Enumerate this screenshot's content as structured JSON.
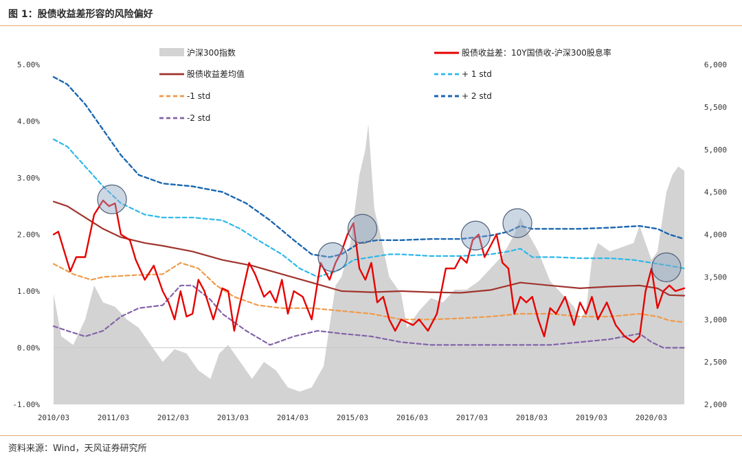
{
  "figure": {
    "title": "图 1：股债收益差形容的风险偏好",
    "source": "资料来源：Wind，天风证券研究所"
  },
  "colors": {
    "hs300_area": "#d3d3d3",
    "spread": "#e60000",
    "mean": "#a0342e",
    "plus1": "#2bb8ea",
    "plus2": "#1a66b0",
    "minus1": "#f09a4a",
    "minus2": "#8263a8",
    "circle": "#8fa6c4",
    "rule": "#e2a877"
  },
  "chart_data": {
    "type": "line",
    "title": "",
    "x_ticks": [
      "2010/03",
      "2011/03",
      "2012/03",
      "2013/03",
      "2014/03",
      "2015/03",
      "2016/03",
      "2017/03",
      "2018/03",
      "2019/03",
      "2020/03"
    ],
    "x_range": [
      2010.17,
      2020.75
    ],
    "y_left": {
      "ylim": [
        -1.0,
        5.0
      ],
      "ticks": [
        "-1.00%",
        "0.00%",
        "1.00%",
        "2.00%",
        "3.00%",
        "4.00%",
        "5.00%"
      ]
    },
    "y_right": {
      "ylim": [
        2000,
        6000
      ],
      "ticks": [
        "2,000",
        "2,500",
        "3,000",
        "3,500",
        "4,000",
        "4,500",
        "5,000",
        "5,500",
        "6,000"
      ]
    },
    "legend": [
      "沪深300指数",
      "股债收益差：10Y国债收-沪深300股息率",
      "股债收益差均值",
      "+ 1 std",
      "-1 std",
      "+ 2 std",
      "-2 std"
    ],
    "series": [
      {
        "name": "沪深300指数",
        "axis": "right",
        "kind": "area",
        "x": [
          2010.17,
          2010.3,
          2010.5,
          2010.7,
          2010.85,
          2011.0,
          2011.2,
          2011.4,
          2011.6,
          2011.8,
          2012.0,
          2012.2,
          2012.4,
          2012.6,
          2012.8,
          2012.95,
          2013.1,
          2013.3,
          2013.5,
          2013.7,
          2013.9,
          2014.1,
          2014.3,
          2014.5,
          2014.7,
          2014.9,
          2015.0,
          2015.15,
          2015.3,
          2015.4,
          2015.45,
          2015.55,
          2015.65,
          2015.8,
          2016.0,
          2016.1,
          2016.3,
          2016.5,
          2016.7,
          2016.9,
          2017.1,
          2017.3,
          2017.5,
          2017.7,
          2017.9,
          2018.0,
          2018.1,
          2018.3,
          2018.5,
          2018.7,
          2018.9,
          2019.0,
          2019.1,
          2019.2,
          2019.3,
          2019.5,
          2019.7,
          2019.9,
          2020.0,
          2020.1,
          2020.2,
          2020.3,
          2020.45,
          2020.55,
          2020.65,
          2020.75
        ],
        "y": [
          3300,
          2800,
          2700,
          3000,
          3400,
          3200,
          3150,
          3000,
          2900,
          2700,
          2500,
          2650,
          2600,
          2400,
          2300,
          2600,
          2700,
          2500,
          2300,
          2500,
          2400,
          2200,
          2150,
          2200,
          2450,
          3400,
          3500,
          3900,
          4700,
          5000,
          5300,
          4300,
          4000,
          3500,
          3300,
          2900,
          3100,
          3250,
          3200,
          3350,
          3350,
          3450,
          3600,
          3750,
          4000,
          4200,
          4050,
          3800,
          3450,
          3300,
          3150,
          3000,
          3100,
          3700,
          3900,
          3800,
          3850,
          3900,
          4100,
          3900,
          3700,
          3800,
          4500,
          4700,
          4800,
          4750
        ]
      },
      {
        "name": "股债收益差：10Y国债收-沪深300股息率",
        "axis": "left",
        "kind": "line",
        "x": [
          2010.17,
          2010.25,
          2010.35,
          2010.45,
          2010.55,
          2010.7,
          2010.85,
          2011.0,
          2011.1,
          2011.2,
          2011.3,
          2011.45,
          2011.55,
          2011.7,
          2011.85,
          2012.0,
          2012.1,
          2012.2,
          2012.3,
          2012.4,
          2012.5,
          2012.6,
          2012.7,
          2012.85,
          2013.0,
          2013.1,
          2013.2,
          2013.3,
          2013.45,
          2013.55,
          2013.7,
          2013.8,
          2013.9,
          2014.0,
          2014.1,
          2014.2,
          2014.35,
          2014.5,
          2014.65,
          2014.8,
          2014.9,
          2015.0,
          2015.1,
          2015.2,
          2015.3,
          2015.4,
          2015.5,
          2015.6,
          2015.7,
          2015.8,
          2015.9,
          2016.0,
          2016.1,
          2016.2,
          2016.3,
          2016.45,
          2016.6,
          2016.75,
          2016.9,
          2017.0,
          2017.1,
          2017.2,
          2017.3,
          2017.4,
          2017.5,
          2017.6,
          2017.7,
          2017.8,
          2017.9,
          2018.0,
          2018.1,
          2018.2,
          2018.3,
          2018.4,
          2018.5,
          2018.6,
          2018.75,
          2018.9,
          2019.0,
          2019.1,
          2019.2,
          2019.3,
          2019.45,
          2019.6,
          2019.75,
          2019.9,
          2020.0,
          2020.1,
          2020.2,
          2020.3,
          2020.4,
          2020.5,
          2020.6,
          2020.75
        ],
        "y": [
          2.0,
          2.05,
          1.7,
          1.35,
          1.6,
          1.6,
          2.35,
          2.6,
          2.5,
          2.55,
          2.0,
          1.9,
          1.55,
          1.2,
          1.45,
          1.0,
          0.8,
          0.5,
          1.0,
          0.55,
          0.6,
          1.2,
          1.0,
          0.5,
          1.05,
          1.0,
          0.3,
          0.8,
          1.5,
          1.3,
          0.9,
          1.0,
          0.8,
          1.2,
          0.6,
          1.0,
          0.9,
          0.5,
          1.5,
          1.2,
          1.5,
          1.7,
          2.0,
          2.2,
          1.4,
          1.2,
          1.5,
          0.8,
          0.9,
          0.5,
          0.3,
          0.5,
          0.45,
          0.4,
          0.5,
          0.3,
          0.6,
          1.4,
          1.4,
          1.6,
          1.5,
          1.9,
          2.0,
          1.6,
          1.8,
          2.0,
          1.5,
          1.4,
          0.6,
          0.9,
          0.8,
          0.9,
          0.5,
          0.2,
          0.7,
          0.6,
          0.9,
          0.4,
          0.8,
          0.6,
          0.9,
          0.5,
          0.8,
          0.4,
          0.2,
          0.1,
          0.2,
          1.0,
          1.4,
          0.7,
          1.0,
          1.1,
          1.0,
          1.05
        ]
      },
      {
        "name": "股债收益差均值",
        "axis": "left",
        "kind": "line",
        "x": [
          2010.17,
          2010.4,
          2010.7,
          2011.0,
          2011.3,
          2011.7,
          2012.0,
          2012.5,
          2013.0,
          2013.5,
          2014.0,
          2014.5,
          2015.0,
          2015.5,
          2016.0,
          2016.5,
          2017.0,
          2017.5,
          2018.0,
          2018.5,
          2019.0,
          2019.5,
          2020.0,
          2020.3,
          2020.5,
          2020.75
        ],
        "y": [
          2.58,
          2.5,
          2.3,
          2.1,
          1.95,
          1.85,
          1.8,
          1.7,
          1.55,
          1.45,
          1.3,
          1.15,
          1.0,
          0.98,
          1.0,
          0.98,
          0.97,
          1.02,
          1.15,
          1.1,
          1.05,
          1.08,
          1.1,
          1.05,
          0.93,
          0.92
        ]
      },
      {
        "name": "+ 1 std",
        "axis": "left",
        "kind": "dashed",
        "x": [
          2010.17,
          2010.4,
          2010.7,
          2011.0,
          2011.3,
          2011.7,
          2012.0,
          2012.5,
          2013.0,
          2013.3,
          2013.6,
          2014.0,
          2014.3,
          2014.6,
          2014.9,
          2015.0,
          2015.2,
          2015.5,
          2015.8,
          2016.0,
          2016.5,
          2017.0,
          2017.5,
          2017.8,
          2018.0,
          2018.2,
          2018.6,
          2019.0,
          2019.5,
          2019.9,
          2020.2,
          2020.5,
          2020.75
        ],
        "y": [
          3.68,
          3.55,
          3.2,
          2.85,
          2.55,
          2.35,
          2.3,
          2.3,
          2.25,
          2.1,
          1.9,
          1.65,
          1.4,
          1.25,
          1.35,
          1.4,
          1.55,
          1.6,
          1.65,
          1.65,
          1.62,
          1.62,
          1.65,
          1.7,
          1.75,
          1.6,
          1.6,
          1.58,
          1.58,
          1.55,
          1.5,
          1.45,
          1.4
        ]
      },
      {
        "name": "-1 std",
        "axis": "left",
        "kind": "dashed",
        "x": [
          2010.17,
          2010.5,
          2010.8,
          2011.0,
          2011.5,
          2012.0,
          2012.3,
          2012.6,
          2012.9,
          2013.2,
          2013.6,
          2014.0,
          2014.5,
          2015.0,
          2015.5,
          2016.0,
          2016.5,
          2017.0,
          2017.5,
          2018.0,
          2018.5,
          2019.0,
          2019.5,
          2020.0,
          2020.3,
          2020.5,
          2020.75
        ],
        "y": [
          1.48,
          1.3,
          1.2,
          1.25,
          1.28,
          1.3,
          1.5,
          1.4,
          1.1,
          0.9,
          0.75,
          0.7,
          0.7,
          0.65,
          0.6,
          0.5,
          0.5,
          0.52,
          0.55,
          0.6,
          0.6,
          0.55,
          0.55,
          0.6,
          0.55,
          0.48,
          0.45
        ]
      },
      {
        "name": "+ 2 std",
        "axis": "left",
        "kind": "dashed",
        "x": [
          2010.17,
          2010.4,
          2010.7,
          2011.0,
          2011.3,
          2011.6,
          2012.0,
          2012.5,
          2013.0,
          2013.4,
          2013.8,
          2014.2,
          2014.5,
          2014.8,
          2015.0,
          2015.3,
          2015.6,
          2016.0,
          2016.5,
          2017.0,
          2017.5,
          2017.8,
          2018.0,
          2018.2,
          2018.6,
          2019.0,
          2019.5,
          2020.0,
          2020.3,
          2020.5,
          2020.75
        ],
        "y": [
          4.78,
          4.65,
          4.3,
          3.85,
          3.4,
          3.05,
          2.9,
          2.85,
          2.75,
          2.55,
          2.25,
          1.9,
          1.65,
          1.6,
          1.65,
          1.85,
          1.9,
          1.9,
          1.92,
          1.92,
          1.98,
          2.05,
          2.15,
          2.1,
          2.1,
          2.1,
          2.12,
          2.15,
          2.1,
          2.0,
          1.92
        ]
      },
      {
        "name": "-2 std",
        "axis": "left",
        "kind": "dashed",
        "x": [
          2010.17,
          2010.4,
          2010.7,
          2011.0,
          2011.3,
          2011.6,
          2012.0,
          2012.3,
          2012.5,
          2012.8,
          2013.0,
          2013.4,
          2013.8,
          2014.2,
          2014.6,
          2015.0,
          2015.5,
          2016.0,
          2016.5,
          2017.0,
          2017.5,
          2018.0,
          2018.5,
          2019.0,
          2019.5,
          2020.0,
          2020.2,
          2020.4,
          2020.75
        ],
        "y": [
          0.38,
          0.3,
          0.2,
          0.3,
          0.55,
          0.7,
          0.75,
          1.1,
          1.1,
          0.85,
          0.6,
          0.3,
          0.05,
          0.2,
          0.3,
          0.25,
          0.2,
          0.1,
          0.05,
          0.05,
          0.05,
          0.05,
          0.05,
          0.1,
          0.15,
          0.25,
          0.1,
          0.0,
          0.0
        ]
      }
    ],
    "highlight_circles": [
      {
        "x": 2011.15,
        "y": 2.62
      },
      {
        "x": 2014.85,
        "y": 1.6
      },
      {
        "x": 2015.35,
        "y": 2.1
      },
      {
        "x": 2017.25,
        "y": 1.98
      },
      {
        "x": 2017.95,
        "y": 2.2
      },
      {
        "x": 2020.45,
        "y": 1.42
      }
    ]
  }
}
